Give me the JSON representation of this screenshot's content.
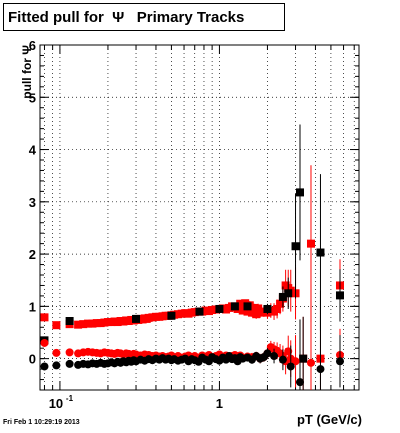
{
  "title": "Fitted pull for  Ψ   Primary Tracks",
  "datestamp": "Fri Feb  1 10:29:19 2013",
  "chart_data": {
    "type": "scatter",
    "xlabel": "pT (GeV/c)",
    "ylabel": "pull for Ψ",
    "xscale": "log",
    "xlim": [
      0.075,
      7.5
    ],
    "ylim": [
      -0.6,
      6
    ],
    "grid": true,
    "yticks": [
      0,
      1,
      2,
      3,
      4,
      5,
      6
    ],
    "xtick_labels": [
      {
        "x": 0.1,
        "label": "10",
        "sup": "-1"
      },
      {
        "x": 1,
        "label": "1",
        "sup": ""
      }
    ],
    "series": [
      {
        "color": "#ff0000",
        "marker": "square",
        "x": [
          0.08,
          0.095,
          0.115,
          0.13,
          0.14,
          0.15,
          0.16,
          0.17,
          0.18,
          0.19,
          0.2,
          0.21,
          0.22,
          0.23,
          0.24,
          0.25,
          0.26,
          0.27,
          0.28,
          0.29,
          0.3,
          0.31,
          0.32,
          0.33,
          0.34,
          0.35,
          0.36,
          0.38,
          0.4,
          0.42,
          0.44,
          0.46,
          0.48,
          0.5,
          0.52,
          0.55,
          0.58,
          0.61,
          0.64,
          0.67,
          0.7,
          0.74,
          0.78,
          0.82,
          0.86,
          0.9,
          0.95,
          1.0,
          1.05,
          1.1,
          1.15,
          1.2,
          1.25,
          1.3,
          1.35,
          1.4,
          1.45,
          1.5,
          1.55,
          1.6,
          1.65,
          1.7,
          1.75,
          1.8,
          1.9,
          2.0,
          2.1,
          2.2,
          2.3,
          2.4,
          2.5,
          2.6,
          2.7,
          2.8,
          3.0,
          3.35,
          3.75,
          4.3,
          5.7
        ],
        "y": [
          0.79,
          0.64,
          0.66,
          0.65,
          0.66,
          0.67,
          0.67,
          0.68,
          0.68,
          0.69,
          0.7,
          0.7,
          0.71,
          0.7,
          0.72,
          0.71,
          0.73,
          0.72,
          0.74,
          0.73,
          0.75,
          0.74,
          0.76,
          0.75,
          0.77,
          0.76,
          0.78,
          0.79,
          0.8,
          0.8,
          0.81,
          0.82,
          0.82,
          0.83,
          0.84,
          0.85,
          0.86,
          0.87,
          0.86,
          0.88,
          0.89,
          0.9,
          0.9,
          0.92,
          0.91,
          0.93,
          0.94,
          0.95,
          0.96,
          0.94,
          0.97,
          1.0,
          0.98,
          0.95,
          1.05,
          0.92,
          1.06,
          0.9,
          1.02,
          0.88,
          0.97,
          0.85,
          0.96,
          0.88,
          0.9,
          0.88,
          0.92,
          0.9,
          0.95,
          1.05,
          1.15,
          1.4,
          1.35,
          1.3,
          1.25,
          0.0,
          2.2,
          0.0,
          1.4
        ],
        "err": [
          0.05,
          0.03,
          0.02,
          0.02,
          0.02,
          0.02,
          0.02,
          0.02,
          0.02,
          0.02,
          0.02,
          0.02,
          0.02,
          0.02,
          0.02,
          0.02,
          0.02,
          0.02,
          0.02,
          0.02,
          0.02,
          0.02,
          0.02,
          0.02,
          0.02,
          0.02,
          0.02,
          0.02,
          0.02,
          0.02,
          0.02,
          0.02,
          0.02,
          0.02,
          0.02,
          0.02,
          0.02,
          0.03,
          0.03,
          0.03,
          0.03,
          0.03,
          0.03,
          0.03,
          0.03,
          0.04,
          0.04,
          0.04,
          0.04,
          0.05,
          0.05,
          0.05,
          0.06,
          0.06,
          0.06,
          0.07,
          0.07,
          0.07,
          0.08,
          0.08,
          0.08,
          0.09,
          0.09,
          0.1,
          0.1,
          0.12,
          0.14,
          0.16,
          0.18,
          0.2,
          0.25,
          0.3,
          0.35,
          0.4,
          0.5,
          0.8,
          1.5,
          1.0,
          0.5
        ]
      },
      {
        "color": "#000000",
        "marker": "square",
        "x": [
          0.08,
          0.115,
          0.3,
          0.5,
          0.75,
          1.0,
          1.25,
          1.5,
          2.0,
          2.5,
          2.7,
          3.0,
          3.2,
          3.35,
          4.3,
          5.7
        ],
        "y": [
          0.35,
          0.72,
          0.76,
          0.82,
          0.9,
          0.95,
          1.0,
          1.0,
          0.95,
          1.18,
          1.25,
          2.15,
          3.18,
          0.0,
          2.03,
          1.21
        ],
        "err": [
          0.05,
          0.02,
          0.02,
          0.02,
          0.03,
          0.04,
          0.05,
          0.07,
          0.1,
          0.2,
          0.3,
          1.0,
          1.3,
          0.8,
          1.5,
          0.5
        ]
      },
      {
        "color": "#ff0000",
        "marker": "circle",
        "x": [
          0.08,
          0.095,
          0.115,
          0.13,
          0.14,
          0.15,
          0.16,
          0.17,
          0.18,
          0.19,
          0.2,
          0.21,
          0.22,
          0.23,
          0.24,
          0.25,
          0.26,
          0.27,
          0.28,
          0.29,
          0.3,
          0.32,
          0.34,
          0.36,
          0.38,
          0.4,
          0.42,
          0.44,
          0.46,
          0.48,
          0.5,
          0.52,
          0.55,
          0.58,
          0.61,
          0.64,
          0.67,
          0.7,
          0.74,
          0.78,
          0.82,
          0.86,
          0.9,
          0.95,
          1.0,
          1.05,
          1.1,
          1.15,
          1.2,
          1.25,
          1.3,
          1.35,
          1.4,
          1.5,
          1.6,
          1.7,
          1.8,
          1.9,
          2.0,
          2.1,
          2.2,
          2.3,
          2.4,
          2.5,
          2.6,
          2.7,
          2.8,
          3.0,
          3.75,
          5.7
        ],
        "y": [
          0.3,
          0.11,
          0.12,
          0.1,
          0.12,
          0.13,
          0.12,
          0.11,
          0.1,
          0.12,
          0.11,
          0.1,
          0.09,
          0.11,
          0.1,
          0.08,
          0.1,
          0.09,
          0.07,
          0.09,
          0.08,
          0.06,
          0.08,
          0.07,
          0.05,
          0.06,
          0.04,
          0.05,
          0.03,
          0.04,
          0.06,
          0.03,
          0.05,
          0.02,
          0.04,
          0.06,
          0.03,
          0.05,
          0.02,
          0.06,
          0.04,
          0.07,
          0.03,
          0.05,
          0.08,
          0.04,
          0.06,
          0.02,
          0.05,
          0.07,
          0.03,
          0.06,
          0.02,
          0.04,
          0.03,
          0.05,
          0.0,
          0.03,
          0.1,
          0.22,
          0.18,
          0.15,
          0.1,
          0.05,
          -0.05,
          0.14,
          0.0,
          -0.05,
          -0.08,
          0.07
        ],
        "err": [
          0.05,
          0.03,
          0.02,
          0.02,
          0.02,
          0.02,
          0.02,
          0.02,
          0.02,
          0.02,
          0.02,
          0.02,
          0.02,
          0.02,
          0.02,
          0.02,
          0.02,
          0.02,
          0.02,
          0.02,
          0.02,
          0.02,
          0.02,
          0.02,
          0.02,
          0.02,
          0.02,
          0.02,
          0.02,
          0.02,
          0.02,
          0.02,
          0.02,
          0.02,
          0.03,
          0.03,
          0.03,
          0.03,
          0.03,
          0.03,
          0.03,
          0.03,
          0.04,
          0.04,
          0.04,
          0.04,
          0.05,
          0.05,
          0.05,
          0.06,
          0.06,
          0.06,
          0.07,
          0.07,
          0.08,
          0.08,
          0.09,
          0.09,
          0.1,
          0.12,
          0.14,
          0.16,
          0.18,
          0.2,
          0.25,
          0.3,
          0.35,
          0.5,
          1.5,
          0.5
        ]
      },
      {
        "color": "#000000",
        "marker": "circle",
        "x": [
          0.08,
          0.095,
          0.115,
          0.13,
          0.14,
          0.15,
          0.16,
          0.17,
          0.18,
          0.19,
          0.2,
          0.21,
          0.22,
          0.23,
          0.24,
          0.25,
          0.26,
          0.27,
          0.28,
          0.29,
          0.3,
          0.32,
          0.34,
          0.36,
          0.38,
          0.4,
          0.42,
          0.44,
          0.46,
          0.48,
          0.5,
          0.52,
          0.55,
          0.58,
          0.61,
          0.64,
          0.67,
          0.7,
          0.74,
          0.78,
          0.82,
          0.86,
          0.9,
          0.95,
          1.0,
          1.05,
          1.1,
          1.15,
          1.2,
          1.25,
          1.3,
          1.35,
          1.4,
          1.5,
          1.6,
          1.7,
          1.8,
          1.9,
          2.0,
          2.2,
          2.5,
          2.8,
          3.2,
          4.3,
          5.7
        ],
        "y": [
          -0.15,
          -0.13,
          -0.1,
          -0.12,
          -0.1,
          -0.11,
          -0.09,
          -0.1,
          -0.08,
          -0.1,
          -0.09,
          -0.07,
          -0.09,
          -0.06,
          -0.08,
          -0.05,
          -0.07,
          -0.04,
          -0.06,
          -0.03,
          -0.05,
          -0.02,
          -0.04,
          -0.01,
          -0.03,
          0.0,
          -0.02,
          0.01,
          -0.02,
          0.0,
          -0.03,
          -0.01,
          -0.04,
          -0.02,
          0.0,
          -0.05,
          -0.01,
          -0.03,
          -0.06,
          0.02,
          -0.02,
          -0.05,
          0.03,
          -0.01,
          -0.04,
          0.02,
          -0.02,
          0.05,
          -0.01,
          0.01,
          -0.05,
          0.03,
          0.0,
          0.02,
          -0.02,
          0.05,
          0.0,
          0.03,
          0.1,
          0.05,
          -0.02,
          -0.15,
          -0.45,
          -0.2,
          -0.05
        ],
        "err": [
          0.05,
          0.03,
          0.02,
          0.02,
          0.02,
          0.02,
          0.02,
          0.02,
          0.02,
          0.02,
          0.02,
          0.02,
          0.02,
          0.02,
          0.02,
          0.02,
          0.02,
          0.02,
          0.02,
          0.02,
          0.02,
          0.02,
          0.02,
          0.02,
          0.02,
          0.02,
          0.02,
          0.02,
          0.02,
          0.02,
          0.02,
          0.02,
          0.02,
          0.02,
          0.03,
          0.03,
          0.03,
          0.03,
          0.03,
          0.03,
          0.03,
          0.03,
          0.04,
          0.04,
          0.04,
          0.04,
          0.05,
          0.05,
          0.05,
          0.06,
          0.06,
          0.06,
          0.07,
          0.07,
          0.08,
          0.08,
          0.09,
          0.09,
          0.1,
          0.14,
          0.2,
          0.4,
          1.2,
          1.5,
          0.5
        ]
      }
    ]
  }
}
